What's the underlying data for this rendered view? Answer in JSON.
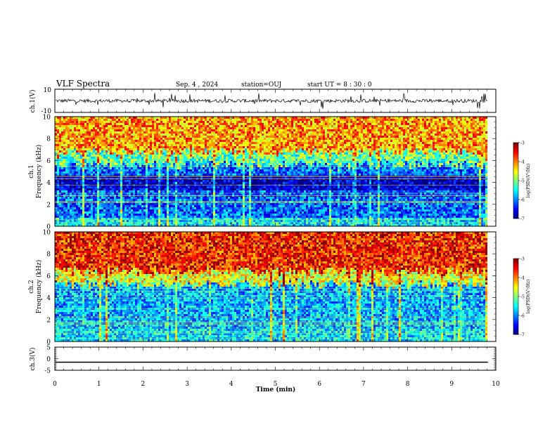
{
  "header": {
    "title": "VLF Spectra",
    "date": "Sep. 4 , 2024",
    "station": "station=OUJ",
    "start": "start  UT =  8 : 30 : 0"
  },
  "chart_data": [
    {
      "type": "line",
      "ylabel": "ch.1(V)",
      "ylim": [
        -10,
        10
      ],
      "yticks": [
        "10",
        "-10"
      ],
      "description": "noisy waveform around 0 V with spikes"
    },
    {
      "type": "heatmap",
      "ylabel_line1": "ch.1",
      "ylabel_line2": "Frequency (kHz)",
      "ylim": [
        0,
        10
      ],
      "yticks": [
        "0",
        "2",
        "4",
        "6",
        "8",
        "10"
      ],
      "colorbar": {
        "label": "log(PSD)(V²/Hz)",
        "min": -7,
        "max": -3,
        "ticks": [
          "-3",
          "-4",
          "-5",
          "-6",
          "-7"
        ]
      }
    },
    {
      "type": "heatmap",
      "ylabel_line1": "ch.2",
      "ylabel_line2": "Frequency (kHz)",
      "ylim": [
        0,
        10
      ],
      "yticks": [
        "0",
        "2",
        "4",
        "6",
        "8",
        "10"
      ],
      "colorbar": {
        "label": "log(PSD)(V²/Hz)",
        "min": -7,
        "max": -3,
        "ticks": [
          "-3",
          "-4",
          "-5",
          "-6",
          "-7"
        ]
      }
    },
    {
      "type": "line",
      "ylabel": "ch.3(V)",
      "ylim": [
        -5,
        5
      ],
      "yticks": [
        "5",
        "0",
        "-5"
      ],
      "constant_value": -1.5
    }
  ],
  "xaxis": {
    "label": "Time  (min)",
    "range": [
      0,
      10
    ],
    "ticks": [
      "0",
      "1",
      "2",
      "3",
      "4",
      "5",
      "6",
      "7",
      "8",
      "9",
      "10"
    ],
    "data_end": 9.82
  },
  "colors": {
    "axis": "#000000",
    "trace": "#000000"
  }
}
